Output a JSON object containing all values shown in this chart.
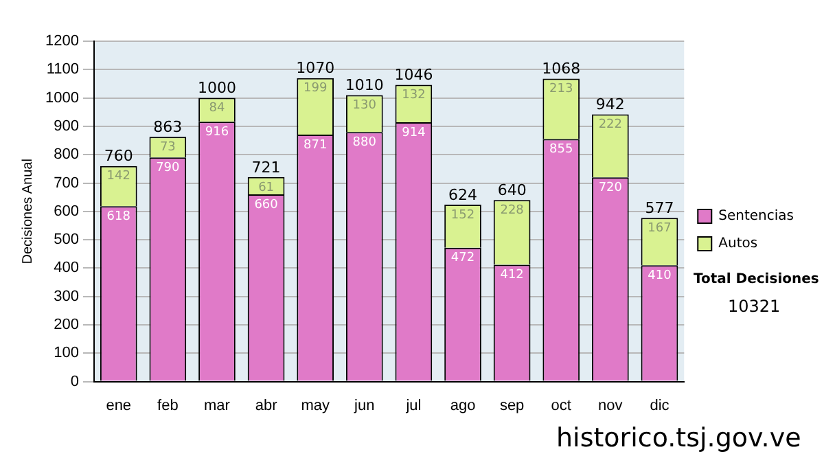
{
  "chart_data": {
    "type": "bar",
    "stacked": true,
    "ylabel": "Decisiones Anual",
    "categories": [
      "ene",
      "feb",
      "mar",
      "abr",
      "may",
      "jun",
      "jul",
      "ago",
      "sep",
      "oct",
      "nov",
      "dic"
    ],
    "series": [
      {
        "name": "Sentencias",
        "color": "#e07ac8",
        "values": [
          618,
          790,
          916,
          660,
          871,
          880,
          914,
          472,
          412,
          855,
          720,
          410
        ]
      },
      {
        "name": "Autos",
        "color": "#d9f291",
        "values": [
          142,
          73,
          84,
          61,
          199,
          130,
          132,
          152,
          228,
          213,
          222,
          167
        ]
      }
    ],
    "totals": [
      "760",
      "863",
      "1000",
      "721",
      "1070",
      "1010",
      "1046",
      "624",
      "640",
      "1068",
      "942",
      "577"
    ],
    "ylim": [
      0,
      1200
    ],
    "yticks": [
      0,
      100,
      200,
      300,
      400,
      500,
      600,
      700,
      800,
      900,
      1000,
      1100,
      1200
    ],
    "grid": "y",
    "legend": "right",
    "data_labels": true,
    "annotations": [
      "Total Decisiones",
      "10321",
      "historico.tsj.gov.ve"
    ]
  }
}
